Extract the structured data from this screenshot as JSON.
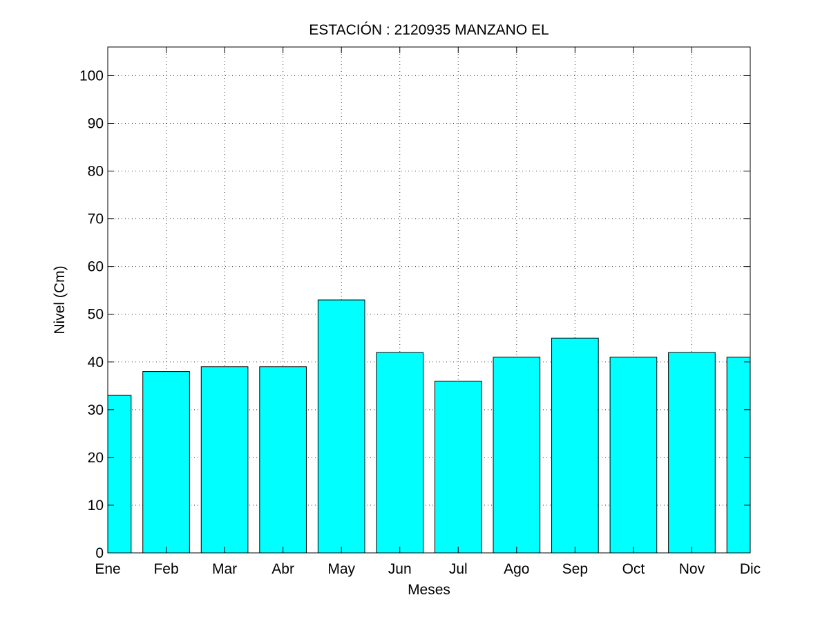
{
  "chart_data": {
    "type": "bar",
    "title": "ESTACIÓN :  2120935  MANZANO EL",
    "xlabel": "Meses",
    "ylabel": "Nivel (Cm)",
    "categories": [
      "Ene",
      "Feb",
      "Mar",
      "Abr",
      "May",
      "Jun",
      "Jul",
      "Ago",
      "Sep",
      "Oct",
      "Nov",
      "Dic"
    ],
    "values": [
      33,
      38,
      39,
      39,
      53,
      42,
      36,
      41,
      45,
      41,
      42,
      41
    ],
    "ylim": [
      0,
      106
    ],
    "yticks": [
      0,
      10,
      20,
      30,
      40,
      50,
      60,
      70,
      80,
      90,
      100
    ],
    "xlim": [
      1,
      12
    ],
    "grid": true,
    "bar_color": "#00ffff"
  }
}
